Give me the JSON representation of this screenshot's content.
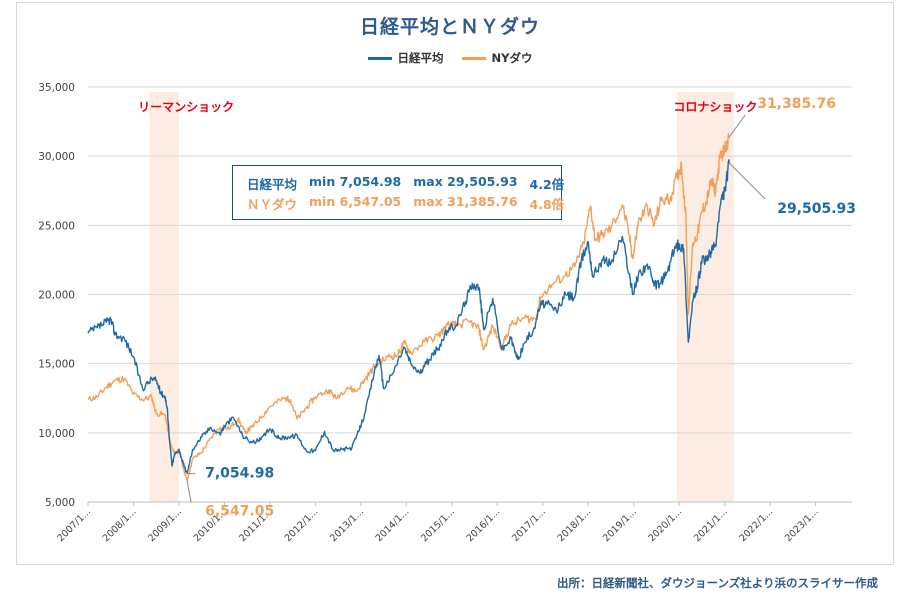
{
  "chart_data": {
    "type": "line",
    "title": "日経平均とＮＹダウ",
    "xlabel": "",
    "ylabel": "",
    "ylim": [
      5000,
      35000
    ],
    "yticks": [
      "5,000",
      "10,000",
      "15,000",
      "20,000",
      "25,000",
      "30,000",
      "35,000"
    ],
    "ytick_values": [
      5000,
      10000,
      15000,
      20000,
      25000,
      30000,
      35000
    ],
    "xticks": [
      "2007/1...",
      "2008/1...",
      "2009/1...",
      "2010/1...",
      "2011/1...",
      "2012/1...",
      "2013/1...",
      "2014/1...",
      "2015/1...",
      "2016/1...",
      "2017/1...",
      "2018/1...",
      "2019/1...",
      "2020/1...",
      "2021/1...",
      "2022/1...",
      "2023/1..."
    ],
    "xlim": [
      2007.0,
      2023.8
    ],
    "series": [
      {
        "name": "日経平均",
        "color": "#1f6aa5",
        "points": [
          [
            2007.0,
            17200
          ],
          [
            2007.2,
            17600
          ],
          [
            2007.4,
            18000
          ],
          [
            2007.5,
            18200
          ],
          [
            2007.6,
            17100
          ],
          [
            2007.8,
            16800
          ],
          [
            2008.0,
            15500
          ],
          [
            2008.2,
            13200
          ],
          [
            2008.4,
            13900
          ],
          [
            2008.5,
            13800
          ],
          [
            2008.6,
            12900
          ],
          [
            2008.7,
            12600
          ],
          [
            2008.75,
            11500
          ],
          [
            2008.8,
            9200
          ],
          [
            2008.85,
            7600
          ],
          [
            2008.9,
            8400
          ],
          [
            2009.0,
            8800
          ],
          [
            2009.1,
            7700
          ],
          [
            2009.18,
            7054.98
          ],
          [
            2009.3,
            8800
          ],
          [
            2009.5,
            9700
          ],
          [
            2009.7,
            10400
          ],
          [
            2009.9,
            9900
          ],
          [
            2010.0,
            10500
          ],
          [
            2010.2,
            11100
          ],
          [
            2010.4,
            9800
          ],
          [
            2010.6,
            9300
          ],
          [
            2010.8,
            9500
          ],
          [
            2011.0,
            10300
          ],
          [
            2011.2,
            9600
          ],
          [
            2011.4,
            9700
          ],
          [
            2011.6,
            9800
          ],
          [
            2011.8,
            8700
          ],
          [
            2012.0,
            8700
          ],
          [
            2012.2,
            10100
          ],
          [
            2012.4,
            8700
          ],
          [
            2012.6,
            8800
          ],
          [
            2012.8,
            8900
          ],
          [
            2012.95,
            10100
          ],
          [
            2013.1,
            11500
          ],
          [
            2013.3,
            14500
          ],
          [
            2013.4,
            15600
          ],
          [
            2013.5,
            13200
          ],
          [
            2013.7,
            14300
          ],
          [
            2013.95,
            16200
          ],
          [
            2014.1,
            15000
          ],
          [
            2014.3,
            14300
          ],
          [
            2014.5,
            15300
          ],
          [
            2014.7,
            16100
          ],
          [
            2014.9,
            17400
          ],
          [
            2015.1,
            17800
          ],
          [
            2015.3,
            19500
          ],
          [
            2015.45,
            20800
          ],
          [
            2015.6,
            20500
          ],
          [
            2015.7,
            17500
          ],
          [
            2015.9,
            19700
          ],
          [
            2016.1,
            16000
          ],
          [
            2016.3,
            16800
          ],
          [
            2016.45,
            15300
          ],
          [
            2016.6,
            16500
          ],
          [
            2016.8,
            17500
          ],
          [
            2016.95,
            19300
          ],
          [
            2017.1,
            19300
          ],
          [
            2017.3,
            18800
          ],
          [
            2017.5,
            20000
          ],
          [
            2017.7,
            19800
          ],
          [
            2017.85,
            22500
          ],
          [
            2018.0,
            23800
          ],
          [
            2018.1,
            21300
          ],
          [
            2018.3,
            22500
          ],
          [
            2018.5,
            22300
          ],
          [
            2018.75,
            24200
          ],
          [
            2018.9,
            21500
          ],
          [
            2018.98,
            20000
          ],
          [
            2019.1,
            21400
          ],
          [
            2019.3,
            22200
          ],
          [
            2019.45,
            20600
          ],
          [
            2019.6,
            20900
          ],
          [
            2019.75,
            21700
          ],
          [
            2019.9,
            23400
          ],
          [
            2020.0,
            23600
          ],
          [
            2020.1,
            23300
          ],
          [
            2020.2,
            16552.83
          ],
          [
            2020.3,
            19500
          ],
          [
            2020.4,
            20600
          ],
          [
            2020.5,
            22400
          ],
          [
            2020.6,
            22500
          ],
          [
            2020.7,
            23100
          ],
          [
            2020.8,
            23500
          ],
          [
            2020.9,
            26400
          ],
          [
            2021.0,
            27500
          ],
          [
            2021.1,
            29505.93
          ]
        ]
      },
      {
        "name": "NYダウ",
        "color": "#f0a05a",
        "points": [
          [
            2007.0,
            12400
          ],
          [
            2007.2,
            12600
          ],
          [
            2007.4,
            13300
          ],
          [
            2007.6,
            13800
          ],
          [
            2007.8,
            13900
          ],
          [
            2008.0,
            12800
          ],
          [
            2008.2,
            12400
          ],
          [
            2008.4,
            12600
          ],
          [
            2008.5,
            11400
          ],
          [
            2008.7,
            11300
          ],
          [
            2008.8,
            9300
          ],
          [
            2008.9,
            8500
          ],
          [
            2009.0,
            8800
          ],
          [
            2009.1,
            7400
          ],
          [
            2009.18,
            6547.05
          ],
          [
            2009.3,
            8100
          ],
          [
            2009.5,
            8600
          ],
          [
            2009.7,
            9600
          ],
          [
            2009.9,
            10400
          ],
          [
            2010.1,
            10300
          ],
          [
            2010.3,
            11000
          ],
          [
            2010.45,
            10000
          ],
          [
            2010.6,
            10400
          ],
          [
            2010.8,
            11100
          ],
          [
            2011.0,
            11900
          ],
          [
            2011.3,
            12500
          ],
          [
            2011.45,
            12400
          ],
          [
            2011.6,
            11000
          ],
          [
            2011.8,
            11800
          ],
          [
            2012.0,
            12600
          ],
          [
            2012.3,
            13100
          ],
          [
            2012.45,
            12500
          ],
          [
            2012.7,
            13300
          ],
          [
            2012.9,
            13000
          ],
          [
            2013.1,
            13900
          ],
          [
            2013.3,
            14800
          ],
          [
            2013.6,
            15500
          ],
          [
            2013.8,
            15600
          ],
          [
            2013.95,
            16500
          ],
          [
            2014.1,
            15800
          ],
          [
            2014.4,
            16600
          ],
          [
            2014.7,
            17000
          ],
          [
            2014.9,
            17800
          ],
          [
            2015.1,
            17800
          ],
          [
            2015.4,
            18000
          ],
          [
            2015.6,
            17500
          ],
          [
            2015.7,
            16000
          ],
          [
            2015.9,
            17700
          ],
          [
            2016.1,
            16200
          ],
          [
            2016.3,
            17800
          ],
          [
            2016.6,
            18300
          ],
          [
            2016.85,
            18200
          ],
          [
            2016.95,
            19800
          ],
          [
            2017.2,
            20700
          ],
          [
            2017.5,
            21400
          ],
          [
            2017.7,
            22000
          ],
          [
            2017.9,
            23700
          ],
          [
            2018.05,
            26400
          ],
          [
            2018.15,
            24000
          ],
          [
            2018.3,
            24300
          ],
          [
            2018.5,
            24800
          ],
          [
            2018.75,
            26500
          ],
          [
            2018.9,
            24300
          ],
          [
            2018.98,
            22600
          ],
          [
            2019.1,
            25200
          ],
          [
            2019.3,
            26400
          ],
          [
            2019.45,
            25000
          ],
          [
            2019.6,
            26800
          ],
          [
            2019.8,
            26900
          ],
          [
            2019.95,
            28500
          ],
          [
            2020.05,
            29300
          ],
          [
            2020.15,
            25500
          ],
          [
            2020.2,
            18591.93
          ],
          [
            2020.3,
            23700
          ],
          [
            2020.4,
            24300
          ],
          [
            2020.5,
            26000
          ],
          [
            2020.6,
            26700
          ],
          [
            2020.7,
            28200
          ],
          [
            2020.8,
            27500
          ],
          [
            2020.9,
            29900
          ],
          [
            2021.0,
            30500
          ],
          [
            2021.1,
            31385.76
          ]
        ]
      }
    ],
    "shaded_periods": [
      {
        "label": "リーマンショック",
        "start": 2008.35,
        "end": 2009.0
      },
      {
        "label": "コロナショック",
        "start": 2019.95,
        "end": 2021.2
      }
    ],
    "annotations": [
      {
        "series": "日経平均",
        "label": "7,054.98",
        "x": 2009.18,
        "y": 7054.98,
        "color": "#1f6aa5"
      },
      {
        "series": "NYダウ",
        "label": "6,547.05",
        "x": 2009.18,
        "y": 6547.05,
        "color": "#f0a05a"
      },
      {
        "series": "NYダウ",
        "label": "31,385.76",
        "x": 2021.1,
        "y": 31385.76,
        "color": "#f0a05a"
      },
      {
        "series": "日経平均",
        "label": "29,505.93",
        "x": 2021.1,
        "y": 29505.93,
        "color": "#1f6aa5"
      }
    ],
    "legend_position": "top-center",
    "grid": true
  },
  "legend": {
    "nikkei": "日経平均",
    "ny": "NYダウ"
  },
  "stats": {
    "nikkei": {
      "name": "日経平均",
      "min": "min 7,054.98",
      "max": "max 29,505.93",
      "ratio": "4.2倍"
    },
    "ny": {
      "name": "ＮＹダウ",
      "min": "min 6,547.05",
      "max": "max 31,385.76",
      "ratio": "4.8倍"
    }
  },
  "source": "出所：日経新聞社、ダウジョーンズ社より浜のスライサー作成",
  "colors": {
    "nikkei": "#1f6aa5",
    "ny": "#f0a05a",
    "shade": "#fde9dc",
    "label_red": "#e0001b"
  }
}
